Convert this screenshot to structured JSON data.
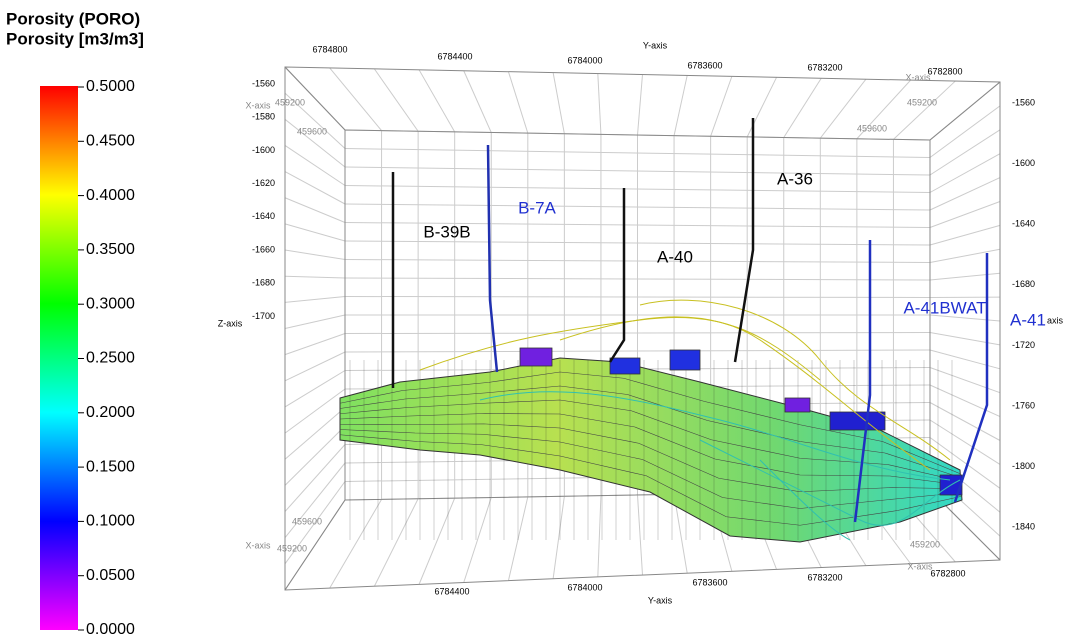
{
  "legend": {
    "title": "Porosity (PORO)",
    "unit": "Porosity [m3/m3]",
    "ticks": [
      "0.5000",
      "0.4500",
      "0.4000",
      "0.3500",
      "0.3000",
      "0.2500",
      "0.2000",
      "0.1500",
      "0.1000",
      "0.0500",
      "0.0000"
    ]
  },
  "axes": {
    "y_top": {
      "title": "Y-axis",
      "ticks": [
        "6784800",
        "6784400",
        "6784000",
        "6783600",
        "6783200",
        "6782800"
      ]
    },
    "y_bottom": {
      "title": "Y-axis",
      "ticks": [
        "6784400",
        "6784000",
        "6783600",
        "6783200",
        "6782800"
      ]
    },
    "z_left": {
      "title": "Z-axis",
      "ticks": [
        "-1560",
        "-1580",
        "-1600",
        "-1620",
        "-1640",
        "-1660",
        "-1680",
        "-1700"
      ]
    },
    "z_right": {
      "title": "axis",
      "ticks": [
        "-1560",
        "-1600",
        "-1640",
        "-1680",
        "-1720",
        "-1760",
        "-1800",
        "-1840"
      ]
    },
    "x_top_left": {
      "title": "X-axis",
      "ticks": [
        "459200",
        "459600"
      ]
    },
    "x_top_right": {
      "title": "X-axis",
      "ticks": [
        "459200",
        "459600"
      ]
    },
    "x_bottom_left": {
      "title": "X-axis",
      "ticks": [
        "459600",
        "459200"
      ]
    },
    "x_bottom_right": {
      "title": "X-axis",
      "ticks": [
        "459200"
      ]
    }
  },
  "wells": [
    {
      "name": "B-39B"
    },
    {
      "name": "B-7A"
    },
    {
      "name": "A-40"
    },
    {
      "name": "A-36"
    },
    {
      "name": "A-41BWAT"
    },
    {
      "name": "A-41"
    }
  ]
}
